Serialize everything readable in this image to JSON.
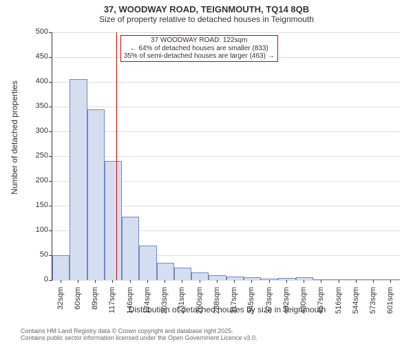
{
  "titles": {
    "main": "37, WOODWAY ROAD, TEIGNMOUTH, TQ14 8QB",
    "sub": "Size of property relative to detached houses in Teignmouth"
  },
  "axes": {
    "ylabel": "Number of detached properties",
    "xlabel": "Distribution of detached houses by size in Teignmouth",
    "ylabel_fontsize": 12,
    "xlabel_fontsize": 12,
    "ylim": [
      0,
      500
    ],
    "ytick_step": 50,
    "yticks": [
      0,
      50,
      100,
      150,
      200,
      250,
      300,
      350,
      400,
      450,
      500
    ],
    "xtick_labels": [
      "32sqm",
      "60sqm",
      "89sqm",
      "117sqm",
      "146sqm",
      "174sqm",
      "203sqm",
      "231sqm",
      "260sqm",
      "288sqm",
      "317sqm",
      "345sqm",
      "373sqm",
      "402sqm",
      "430sqm",
      "457sqm",
      "516sqm",
      "544sqm",
      "573sqm",
      "601sqm"
    ],
    "tick_fontsize": 11
  },
  "chart": {
    "type": "histogram",
    "bar_fill": "#d5ddf1",
    "bar_stroke": "#6e88c3",
    "bar_stroke_width": 1,
    "grid_color": "#dddddd",
    "background_color": "#ffffff",
    "bar_width_rel": 1.0,
    "values": [
      50,
      405,
      345,
      240,
      128,
      70,
      35,
      25,
      15,
      10,
      7,
      5,
      3,
      4,
      5,
      2,
      0,
      2,
      0,
      2
    ]
  },
  "marker": {
    "line_color": "#cc0000",
    "line_width": 1,
    "position_sqm": 122,
    "annotation_lines": [
      "37 WOODWAY ROAD: 122sqm",
      "← 64% of detached houses are smaller (833)",
      "35% of semi-detached houses are larger (463) →"
    ],
    "annotation_border": "#cc0000",
    "annotation_bg": "#ffffff",
    "annotation_fontsize": 10
  },
  "footer": {
    "line1": "Contains HM Land Registry data © Crown copyright and database right 2025.",
    "line2": "Contains public sector information licensed under the Open Government Licence v3.0.",
    "color": "#666666",
    "fontsize": 9
  },
  "title_style": {
    "main_fontsize": 13,
    "sub_fontsize": 12,
    "color": "#333333"
  }
}
